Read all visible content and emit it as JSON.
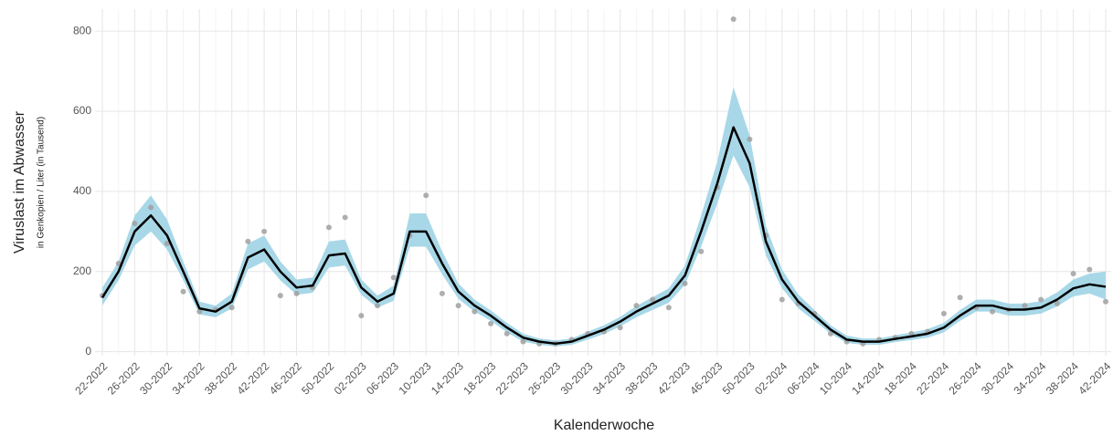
{
  "chart_data": {
    "type": "line",
    "y_label": "Viruslast im Abwasser",
    "y_sublabel": "in Genkopien / Liter (in Tausend)",
    "x_label": "Kalenderwoche",
    "categories": [
      "22-2022",
      null,
      "26-2022",
      null,
      "30-2022",
      null,
      "34-2022",
      null,
      "38-2022",
      null,
      "42-2022",
      null,
      "46-2022",
      null,
      "50-2022",
      null,
      "02-2023",
      null,
      "06-2023",
      null,
      "10-2023",
      null,
      "14-2023",
      null,
      "18-2023",
      null,
      "22-2023",
      null,
      "26-2023",
      null,
      "30-2023",
      null,
      "34-2023",
      null,
      "38-2023",
      null,
      "42-2023",
      null,
      "46-2023",
      null,
      "50-2023",
      null,
      "02-2024",
      null,
      "06-2024",
      null,
      "10-2024",
      null,
      "14-2024",
      null,
      "18-2024",
      null,
      "22-2024",
      null,
      "26-2024",
      null,
      "30-2024",
      null,
      "34-2024",
      null,
      "38-2024",
      null,
      "42-2024"
    ],
    "series": [
      {
        "color": "#000000",
        "values": [
          135,
          200,
          300,
          340,
          290,
          200,
          108,
          100,
          125,
          235,
          255,
          200,
          160,
          165,
          240,
          245,
          160,
          125,
          145,
          300,
          300,
          220,
          150,
          115,
          90,
          60,
          35,
          25,
          20,
          25,
          40,
          55,
          75,
          100,
          120,
          140,
          190,
          300,
          420,
          560,
          470,
          275,
          180,
          125,
          90,
          55,
          30,
          25,
          25,
          32,
          38,
          45,
          60,
          90,
          115,
          115,
          105,
          105,
          110,
          130,
          158,
          168,
          162
        ]
      }
    ],
    "band": {
      "color": "#a8d8e8",
      "upper": [
        160,
        225,
        340,
        390,
        330,
        225,
        125,
        115,
        145,
        270,
        290,
        225,
        180,
        185,
        275,
        280,
        180,
        140,
        165,
        345,
        345,
        250,
        170,
        130,
        103,
        72,
        45,
        33,
        28,
        33,
        50,
        66,
        87,
        114,
        136,
        158,
        215,
        340,
        475,
        660,
        540,
        315,
        205,
        143,
        104,
        66,
        40,
        33,
        33,
        41,
        48,
        56,
        72,
        104,
        130,
        130,
        120,
        120,
        126,
        148,
        180,
        195,
        200
      ],
      "lower": [
        115,
        178,
        265,
        300,
        255,
        178,
        93,
        86,
        108,
        205,
        225,
        178,
        142,
        147,
        210,
        215,
        142,
        110,
        127,
        262,
        262,
        193,
        132,
        100,
        77,
        48,
        25,
        17,
        13,
        17,
        30,
        44,
        63,
        86,
        104,
        122,
        167,
        262,
        370,
        490,
        410,
        240,
        158,
        108,
        77,
        45,
        22,
        17,
        17,
        24,
        29,
        35,
        48,
        77,
        100,
        100,
        90,
        90,
        95,
        113,
        138,
        145,
        130
      ]
    },
    "points": {
      "color": "#a0a0a0",
      "values": [
        140,
        220,
        320,
        360,
        270,
        150,
        100,
        105,
        110,
        275,
        300,
        140,
        145,
        160,
        310,
        335,
        90,
        115,
        185,
        290,
        390,
        145,
        115,
        100,
        70,
        45,
        25,
        20,
        20,
        30,
        45,
        50,
        60,
        115,
        130,
        110,
        170,
        250,
        410,
        830,
        530,
        290,
        130,
        120,
        95,
        45,
        25,
        20,
        30,
        35,
        45,
        50,
        95,
        135,
        110,
        100,
        105,
        115,
        130,
        120,
        195,
        205,
        125
      ]
    },
    "ylim": [
      -10,
      855
    ],
    "yticks": [
      0,
      200,
      400,
      600,
      800
    ],
    "grid": true
  }
}
